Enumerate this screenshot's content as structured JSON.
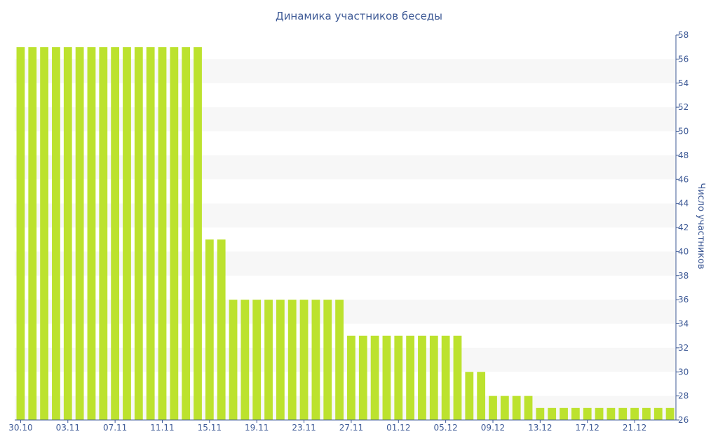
{
  "chart_data": {
    "type": "bar",
    "title": "Динамика участников беседы",
    "ylabel": "Число участников",
    "xlabel": "",
    "y_axis_side": "right",
    "ylim": [
      26,
      58
    ],
    "y_ticks": [
      26,
      28,
      30,
      32,
      34,
      36,
      38,
      40,
      42,
      44,
      46,
      48,
      50,
      52,
      54,
      56,
      58
    ],
    "x_tick_labels": [
      "30.10",
      "03.11",
      "07.11",
      "11.11",
      "15.11",
      "19.11",
      "23.11",
      "27.11",
      "01.12",
      "05.12",
      "09.12",
      "13.12",
      "17.12",
      "21.12"
    ],
    "x_tick_every": 4,
    "series": [
      {
        "values": [
          57,
          57,
          57,
          57,
          57,
          57,
          57,
          57,
          57,
          57,
          57,
          57,
          57,
          57,
          57,
          57,
          41,
          41,
          36,
          36,
          36,
          36,
          36,
          36,
          36,
          36,
          36,
          36,
          33,
          33,
          33,
          33,
          33,
          33,
          33,
          33,
          33,
          33,
          30,
          30,
          28,
          28,
          28,
          28,
          27,
          27,
          27,
          27,
          27,
          27,
          27,
          27,
          27,
          27,
          27,
          27
        ]
      }
    ],
    "grid": "alternating horizontal bands",
    "legend": "none",
    "colors": {
      "bar": "#BCE22E",
      "band": "#F7F7F7",
      "text": "#3E5A96",
      "axis": "#3E5A96"
    }
  }
}
